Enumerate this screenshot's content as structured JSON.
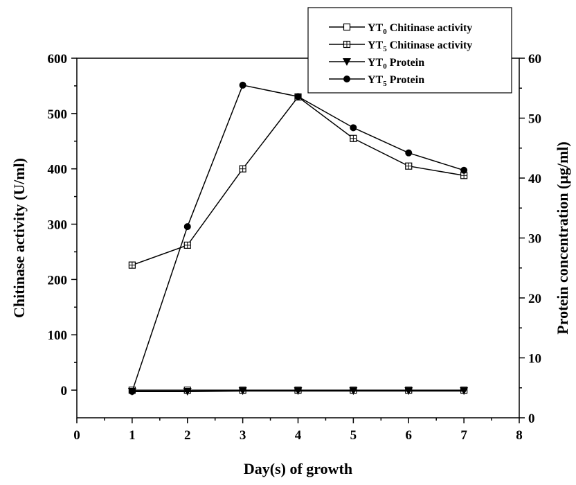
{
  "chart_data": {
    "type": "line",
    "x_axis": {
      "label": "Day(s) of growth",
      "range": [
        0,
        8
      ],
      "ticks": [
        0,
        1,
        2,
        3,
        4,
        5,
        6,
        7,
        8
      ],
      "tick_labels": [
        "0",
        "1",
        "2",
        "3",
        "4",
        "5",
        "6",
        "7",
        "8"
      ]
    },
    "y_left_axis": {
      "label": "Chitinase activity (U/ml)",
      "range": [
        -50,
        600
      ],
      "ticks": [
        0,
        100,
        200,
        300,
        400,
        500,
        600
      ],
      "tick_labels": [
        "0",
        "100",
        "200",
        "300",
        "400",
        "500",
        "600"
      ]
    },
    "y_right_axis": {
      "label": "Protein concentration (μg/ml)",
      "range": [
        0,
        60
      ],
      "ticks": [
        0,
        10,
        20,
        30,
        40,
        50,
        60
      ],
      "tick_labels": [
        "0",
        "10",
        "20",
        "30",
        "40",
        "50",
        "60"
      ]
    },
    "series": [
      {
        "name_main": "YT",
        "name_sub": "0",
        "name_rest": " Chitinase activity",
        "marker": "open-square",
        "axis": "left",
        "x": [
          1,
          2,
          3,
          4,
          5,
          6,
          7
        ],
        "y": [
          0,
          0,
          0,
          0,
          0,
          0,
          0
        ]
      },
      {
        "name_main": "YT",
        "name_sub": "5",
        "name_rest": " Chitinase activity",
        "marker": "crossed-square",
        "axis": "left",
        "x": [
          1,
          2,
          3,
          4,
          5,
          6,
          7
        ],
        "y": [
          226,
          262,
          400,
          530,
          455,
          405,
          388
        ]
      },
      {
        "name_main": "YT",
        "name_sub": "0",
        "name_rest": " Protein",
        "marker": "filled-triangle-down",
        "axis": "right",
        "x": [
          1,
          2,
          3,
          4,
          5,
          6,
          7
        ],
        "y": [
          4.4,
          4.4,
          4.5,
          4.5,
          4.5,
          4.5,
          4.5
        ]
      },
      {
        "name_main": "YT",
        "name_sub": "5",
        "name_rest": " Protein",
        "marker": "filled-circle",
        "axis": "right",
        "x": [
          1,
          2,
          3,
          4,
          5,
          6,
          7
        ],
        "y": [
          4.4,
          31.9,
          55.5,
          53.6,
          48.4,
          44.2,
          41.3
        ]
      }
    ],
    "legend_position": "top-right",
    "grid": false,
    "colors": {
      "line": "#000000",
      "background": "#ffffff"
    }
  }
}
